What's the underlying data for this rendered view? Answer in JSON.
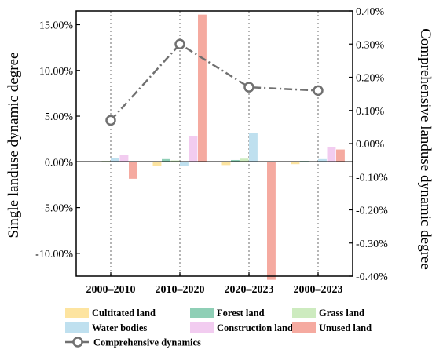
{
  "chart_data": {
    "type": "bar",
    "categories": [
      "2000–2010",
      "2010–2020",
      "2020–2023",
      "2000–2023"
    ],
    "series": [
      {
        "name": "Cultitated land",
        "color": "#fde4a0",
        "values": [
          -0.05,
          -0.45,
          -0.35,
          -0.25
        ]
      },
      {
        "name": "Forest land",
        "color": "#8fcfb6",
        "values": [
          0.05,
          0.3,
          0.2,
          0.1
        ]
      },
      {
        "name": "Grass land",
        "color": "#cdebbf",
        "values": [
          0.1,
          0.15,
          0.35,
          0.05
        ]
      },
      {
        "name": "Water bodies",
        "color": "#bfe0ef",
        "values": [
          0.45,
          -0.45,
          3.15,
          0.3
        ]
      },
      {
        "name": "Construction land",
        "color": "#f2ccf0",
        "values": [
          0.75,
          2.8,
          0.0,
          1.65
        ]
      },
      {
        "name": "Unused land",
        "color": "#f5aaa0",
        "values": [
          -1.85,
          16.1,
          -12.9,
          1.35
        ]
      }
    ],
    "line_series": {
      "name": "Comprehensive dynamics",
      "color": "#707070",
      "values": [
        0.07,
        0.3,
        0.17,
        0.16
      ]
    },
    "ylabel": "Single landuse dynamic degree",
    "y2label": "Comprehensive landuse dynamic degree",
    "ylim": [
      -12.5,
      16.5
    ],
    "yticks": [
      15,
      10,
      5,
      0,
      -5,
      -10
    ],
    "ytick_labels": [
      "15.00%",
      "10.00%",
      "5.00%",
      "0.00%",
      "-5.00%",
      "-10.00%"
    ],
    "y2lim": [
      -0.4,
      0.4
    ],
    "y2ticks": [
      0.4,
      0.3,
      0.2,
      0.1,
      0.0,
      -0.1,
      -0.2,
      -0.3,
      -0.4
    ],
    "y2tick_labels": [
      "0.40%",
      "0.30%",
      "0.20%",
      "0.10%",
      "0.00%",
      "-0.10%",
      "-0.20%",
      "-0.30%",
      "-0.40%"
    ],
    "grid": "vertical dotted at categories",
    "legend_position": "bottom"
  }
}
